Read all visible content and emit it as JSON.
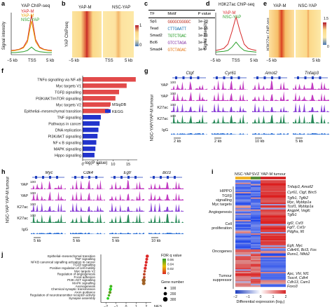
{
  "panels": {
    "a": {
      "letter": "a",
      "title": "YAP ChIP-seq",
      "legend": [
        "YAP-M",
        "YAP-M",
        "NSC-YAP"
      ],
      "ylabel": "Signal intensity",
      "x_ticks": [
        "−5 kb",
        "TSS",
        "5 kb"
      ]
    },
    "b": {
      "letter": "b",
      "groups": [
        "YAP-M",
        "NSC-YAP"
      ],
      "ylabel": "YAP ChIPseq",
      "x_ticks": [
        "−5 kb",
        "TSS",
        "5 kb"
      ],
      "scale_ticks": [
        "1",
        "0"
      ]
    },
    "c": {
      "letter": "c",
      "headers": [
        "TF",
        "Motif",
        "P value"
      ],
      "rows": [
        {
          "tf": "Sp1",
          "motif": "GGGGCGGGGC",
          "p": "1e-20"
        },
        {
          "tf": "Tead",
          "motif": "CTTGAATT",
          "p": "1e-16"
        },
        {
          "tf": "Smad2",
          "motif": "TGTCTGAC",
          "p": "1e-21"
        },
        {
          "tf": "Bcl6",
          "motif": "GTCCTAGA",
          "p": "1e-8"
        },
        {
          "tf": "Smad4",
          "motif": "GTCTAGAC",
          "p": "1e-6"
        }
      ]
    },
    "d": {
      "letter": "d",
      "title": "H3K27ac ChIP-seq",
      "legend": [
        "YAP-M",
        "NSC-YAP"
      ],
      "ylabel": "Signal intensity",
      "x_ticks": [
        "−5 kb",
        "TSS",
        "5 kb"
      ]
    },
    "e": {
      "letter": "e",
      "groups": [
        "YAP-M",
        "NSC-YAP"
      ],
      "ylabel": "H3K27ac ChIP-seq",
      "x_ticks": [
        "−5 kb",
        "5 kb"
      ],
      "scale_ticks": [
        "1.5",
        "0"
      ]
    },
    "f": {
      "letter": "f",
      "xlabel": "−log(P value)",
      "x_ticks": [
        "0",
        "5",
        "10",
        "15"
      ],
      "legend": [
        "MSigDB",
        "KEGG"
      ]
    },
    "g": {
      "letter": "g",
      "genes": [
        "Ctgf",
        "Cyr61",
        "Amot2",
        "Tnfaip3"
      ],
      "tracks": [
        "YAP",
        "YAP",
        "K27ac",
        "K27ac",
        "IgG"
      ],
      "scale_label": "100",
      "scale_bars": [
        "2 kb",
        "2 kb",
        "10 kb",
        "5 kb"
      ],
      "group_label": "NSC-YAP/YAP-M tumour"
    },
    "h": {
      "letter": "h",
      "genes": [
        "Myc",
        "Cdk4",
        "Egfr",
        "Bcl3"
      ],
      "tracks": [
        "YAP",
        "YAP",
        "K27ac",
        "K27ac",
        "IgG"
      ],
      "scale_label": "100",
      "scale_bars": [
        "5 kb",
        "5 kb",
        "5 kb",
        "10 kb"
      ],
      "group_label": "NSC-YAP YAP-M tumour"
    },
    "i": {
      "letter": "i",
      "columns": [
        "NSC-YAP",
        "SVZ",
        "YAP-M tumour"
      ],
      "left_labels": [
        "HIPPO",
        "TGFβ signalling",
        "Myc targets",
        "Angiogenesis",
        "Cell proliferation",
        "Oncogenes",
        "Tumour suppressor"
      ],
      "right_labels": [
        "Tnfaip3, Amotl2",
        "Cyr61, Ctgf, Birc5",
        "Tgfb1, Tgfb2",
        "Myc, Mybbp1a",
        "Tcof1, Mybbp1a",
        "Angpt4, Vegfc",
        "Tgfb1",
        "Igf2, Csf3",
        "Fgf7, Csf1r",
        "Pdgfra, Il6",
        "Egfr, Myc",
        "Cdk4/6, Bcl3, Fos",
        "Runx1, Nfkb2",
        "Apc, Vhl, Nf1",
        "Tsoc4, Cdh4",
        "Cdh13, Cam1",
        "Foxo3"
      ],
      "scale_ticks": [
        "−2",
        "−1",
        "0",
        "1",
        "2"
      ],
      "scale_label": "Differential expression (log₂)"
    },
    "j": {
      "letter": "j",
      "xlabel": "NES",
      "x_ticks": [
        "−2",
        "−1",
        "0",
        "1",
        "2"
      ],
      "legend_title": "FDR q value",
      "fdr_ticks": [
        "0.06",
        "0.04",
        "0.02",
        "0"
      ],
      "size_title": "Gene number",
      "size_ticks": [
        "100",
        "200",
        "300"
      ]
    }
  },
  "chart_data": [
    {
      "type": "line",
      "id": "a",
      "x": [
        -5,
        -4,
        -3,
        -2,
        -1,
        0,
        1,
        2,
        3,
        4,
        5
      ],
      "series": [
        {
          "name": "YAP-M",
          "values": [
            0.1,
            0.11,
            0.13,
            0.18,
            0.35,
            0.95,
            0.36,
            0.18,
            0.13,
            0.11,
            0.1
          ]
        },
        {
          "name": "YAP-M",
          "values": [
            0.09,
            0.1,
            0.12,
            0.16,
            0.3,
            0.8,
            0.31,
            0.16,
            0.12,
            0.1,
            0.09
          ]
        },
        {
          "name": "NSC-YAP",
          "values": [
            0.05,
            0.05,
            0.06,
            0.07,
            0.1,
            0.18,
            0.1,
            0.07,
            0.06,
            0.05,
            0.05
          ]
        }
      ]
    },
    {
      "type": "line",
      "id": "d",
      "x": [
        -5,
        -4,
        -3,
        -2,
        -1,
        0,
        1,
        2,
        3,
        4,
        5
      ],
      "series": [
        {
          "name": "YAP-M",
          "values": [
            0.1,
            0.12,
            0.15,
            0.25,
            0.55,
            0.9,
            0.55,
            0.25,
            0.15,
            0.12,
            0.1
          ]
        },
        {
          "name": "NSC-YAP",
          "values": [
            0.06,
            0.07,
            0.08,
            0.1,
            0.18,
            0.3,
            0.18,
            0.1,
            0.08,
            0.07,
            0.06
          ]
        }
      ]
    },
    {
      "type": "bar",
      "id": "f",
      "categories": [
        "TNFα signalling via NF-κB",
        "Myc targets V1",
        "TGFβ signalling",
        "PI3K/AKT/mTOR signalling",
        "Myc targets V2",
        "Epithelial–mesenchymal transition",
        "TNF signalling",
        "Pathways in cancer",
        "DNA replication",
        "PI3K/AKT signalling",
        "NF κ B signalling",
        "MAPK signalling",
        "Hippo signalling"
      ],
      "values": [
        17.5,
        14.5,
        12.0,
        10.8,
        9.0,
        8.6,
        6.0,
        5.6,
        5.2,
        4.9,
        4.5,
        4.2,
        3.9
      ],
      "groups": [
        "MSigDB",
        "MSigDB",
        "MSigDB",
        "MSigDB",
        "MSigDB",
        "MSigDB",
        "KEGG",
        "KEGG",
        "KEGG",
        "KEGG",
        "KEGG",
        "KEGG",
        "KEGG"
      ],
      "xlim": [
        0,
        18
      ]
    },
    {
      "type": "scatter",
      "id": "j",
      "categories": [
        "Epithelial–mesenchymal transition",
        "TNF signalling",
        "NFKB canonical signalling activation in cancer",
        "TGFβ signalling",
        "Positive regulation of cell motility",
        "Myc targets V2",
        "Regulation of angiogenesis",
        "Focal adhesion",
        "PI3K-AKT signalling",
        "MAPK signalling",
        "Axonogenesis",
        "Chemical synaptic transmission",
        "Axon guidance",
        "Regulation of neurotransmitter receptor activity",
        "Synapse assembly"
      ],
      "x": [
        2.1,
        2.05,
        2.0,
        1.95,
        1.9,
        1.85,
        1.8,
        1.8,
        1.75,
        1.75,
        -1.5,
        -1.55,
        -1.6,
        -1.7,
        -1.8
      ],
      "fdr": [
        0,
        0,
        0,
        0,
        0,
        0.01,
        0.01,
        0.01,
        0.02,
        0.02,
        0.05,
        0.06,
        0.04,
        0.05,
        0.06
      ],
      "gene_number": [
        180,
        150,
        140,
        120,
        160,
        100,
        130,
        120,
        260,
        220,
        140,
        180,
        160,
        110,
        120
      ],
      "xlim": [
        -2.5,
        2.5
      ]
    }
  ]
}
